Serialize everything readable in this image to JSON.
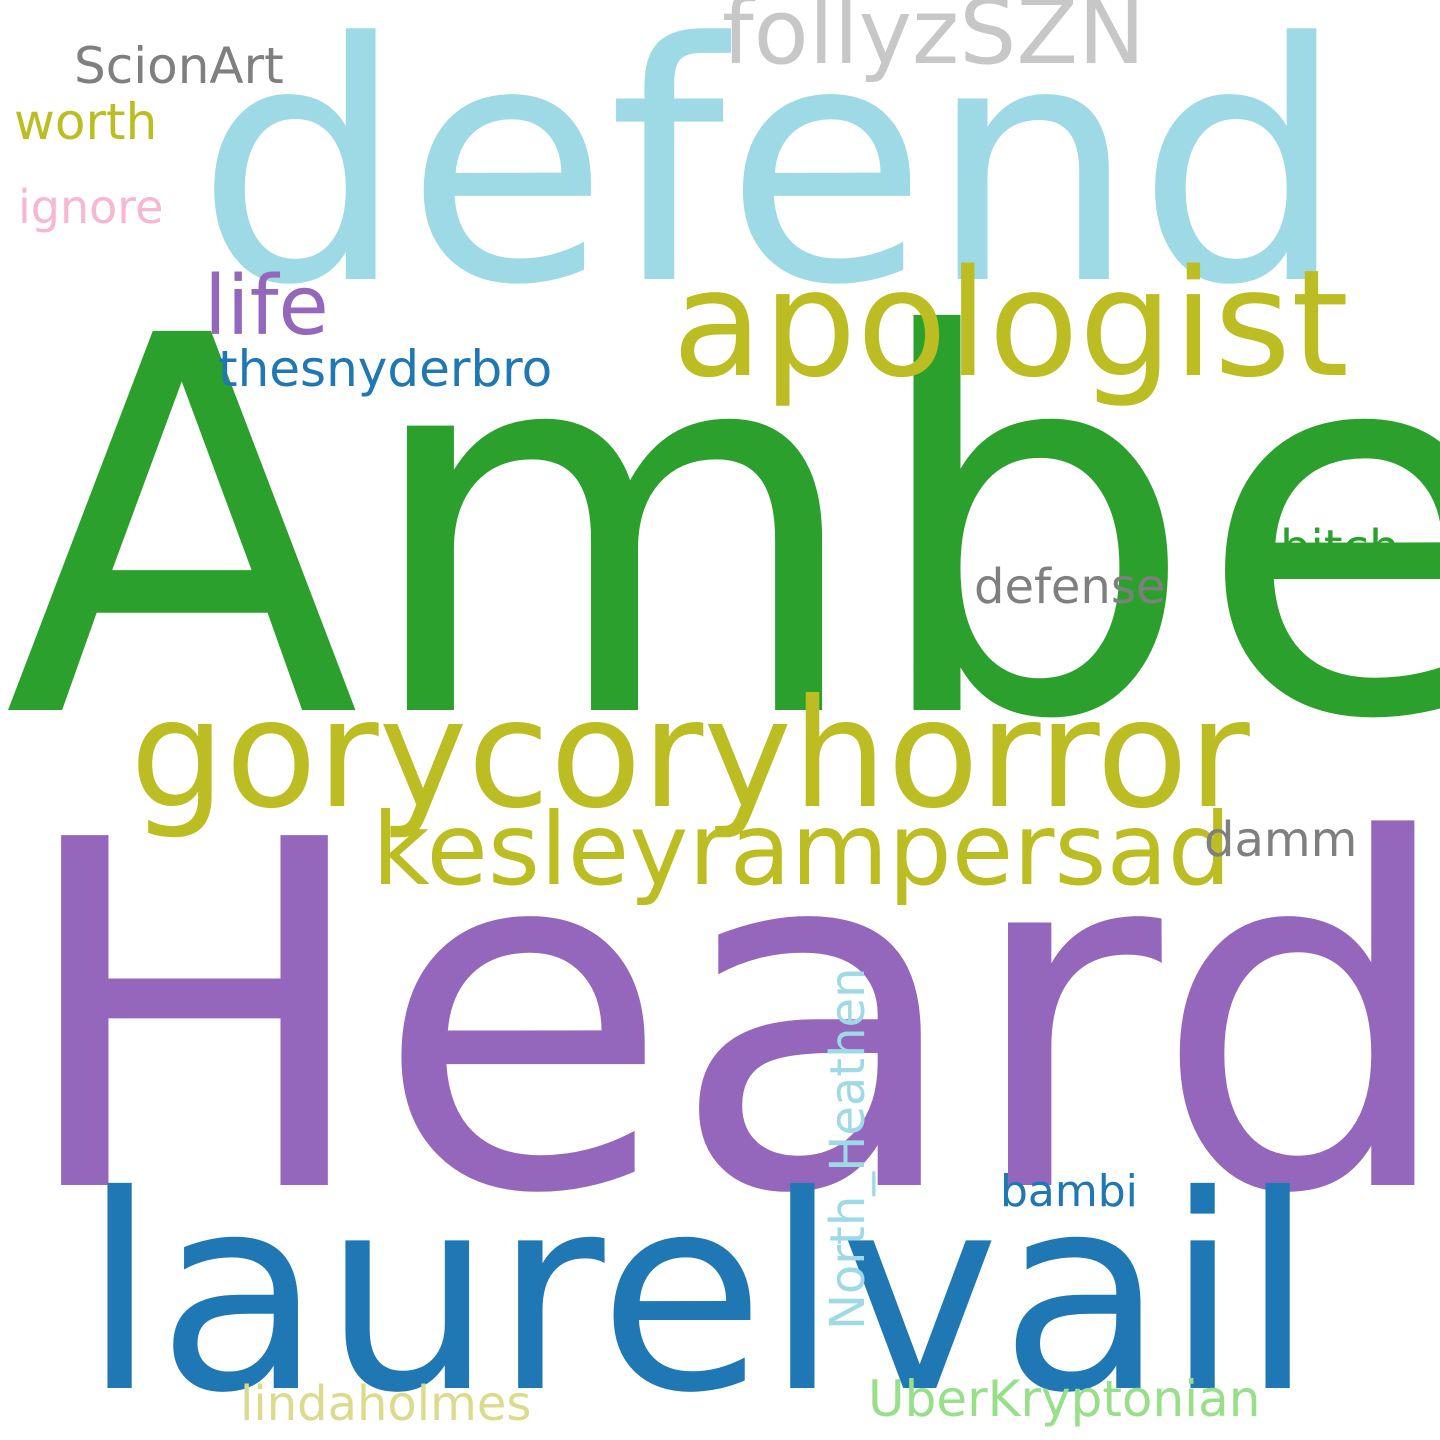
{
  "words": {
    "heard": {
      "text": "Heard",
      "color": "#9467bd"
    },
    "amber": {
      "text": "Amber",
      "color": "#2ca02c"
    },
    "defend": {
      "text": "defend",
      "color": "#9edae5"
    },
    "laurel": {
      "text": "laurelvail",
      "color": "#1f77b4"
    },
    "gory": {
      "text": "gorycoryhorror",
      "color": "#bcbd22"
    },
    "apol": {
      "text": "apologist",
      "color": "#bcbd22"
    },
    "kesley": {
      "text": "kesleyrampersad",
      "color": "#bcbd22"
    },
    "folly": {
      "text": "follyzSZN",
      "color": "#c7c7c7"
    },
    "life": {
      "text": "life",
      "color": "#9467bd"
    },
    "snyder": {
      "text": "thesnyderbro",
      "color": "#1f77b4"
    },
    "scion": {
      "text": "ScionArt",
      "color": "#7f7f7f"
    },
    "worth": {
      "text": "worth",
      "color": "#bcbd22"
    },
    "ignore": {
      "text": "ignore",
      "color": "#f7b6d2"
    },
    "bitch": {
      "text": "bitch",
      "color": "#2ca02c"
    },
    "defense": {
      "text": "defense",
      "color": "#7f7f7f"
    },
    "damm": {
      "text": "damm",
      "color": "#7f7f7f"
    },
    "bambi": {
      "text": "bambi",
      "color": "#1f77b4"
    },
    "uber": {
      "text": "UberKryptonian",
      "color": "#98df8a"
    },
    "linda": {
      "text": "lindaholmes",
      "color": "#dbdb8d"
    },
    "north": {
      "text": "North_Heathen",
      "color": "#9edae5"
    }
  }
}
